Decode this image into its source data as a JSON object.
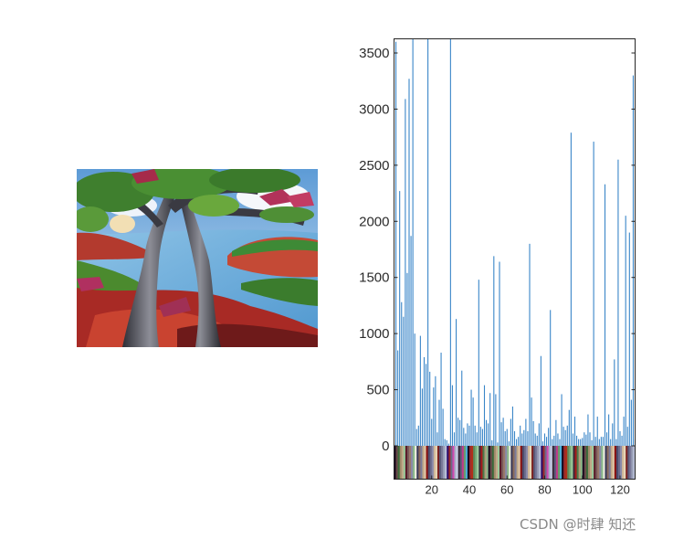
{
  "watermark": "CSDN @时肆 知还",
  "image_panel": {
    "subject": "painted landscape with trees, river and hills"
  },
  "chart_data": {
    "type": "bar",
    "title": "",
    "xlabel": "",
    "ylabel": "",
    "xlim": [
      0,
      128
    ],
    "ylim": [
      -300,
      3650
    ],
    "x_ticks": [
      20,
      40,
      60,
      80,
      100,
      120
    ],
    "y_ticks": [
      0,
      500,
      1000,
      1500,
      2000,
      2500,
      3000,
      3500
    ],
    "color": "#3a86c8",
    "colorbar": "indexed colormap of the image palette shown below the axis",
    "values": [
      3600,
      850,
      2270,
      1280,
      1150,
      3090,
      1540,
      3270,
      1870,
      3650,
      1000,
      150,
      180,
      980,
      510,
      790,
      730,
      3650,
      660,
      240,
      520,
      620,
      120,
      410,
      830,
      330,
      60,
      50,
      20,
      3650,
      540,
      120,
      1130,
      250,
      230,
      670,
      160,
      110,
      200,
      180,
      500,
      430,
      180,
      120,
      1480,
      170,
      150,
      540,
      230,
      200,
      470,
      50,
      1690,
      460,
      30,
      1640,
      210,
      250,
      130,
      150,
      40,
      240,
      350,
      130,
      60,
      80,
      180,
      110,
      140,
      240,
      130,
      1800,
      430,
      220,
      110,
      90,
      200,
      800,
      40,
      110,
      80,
      160,
      1210,
      60,
      90,
      230,
      110,
      60,
      460,
      170,
      140,
      180,
      320,
      2790,
      110,
      260,
      90,
      60,
      60,
      70,
      120,
      100,
      280,
      120,
      50,
      2710,
      80,
      260,
      60,
      80,
      80,
      2330,
      120,
      280,
      60,
      200,
      770,
      60,
      2550,
      130,
      90,
      260,
      2050,
      170,
      1900,
      410,
      3300,
      60
    ]
  }
}
